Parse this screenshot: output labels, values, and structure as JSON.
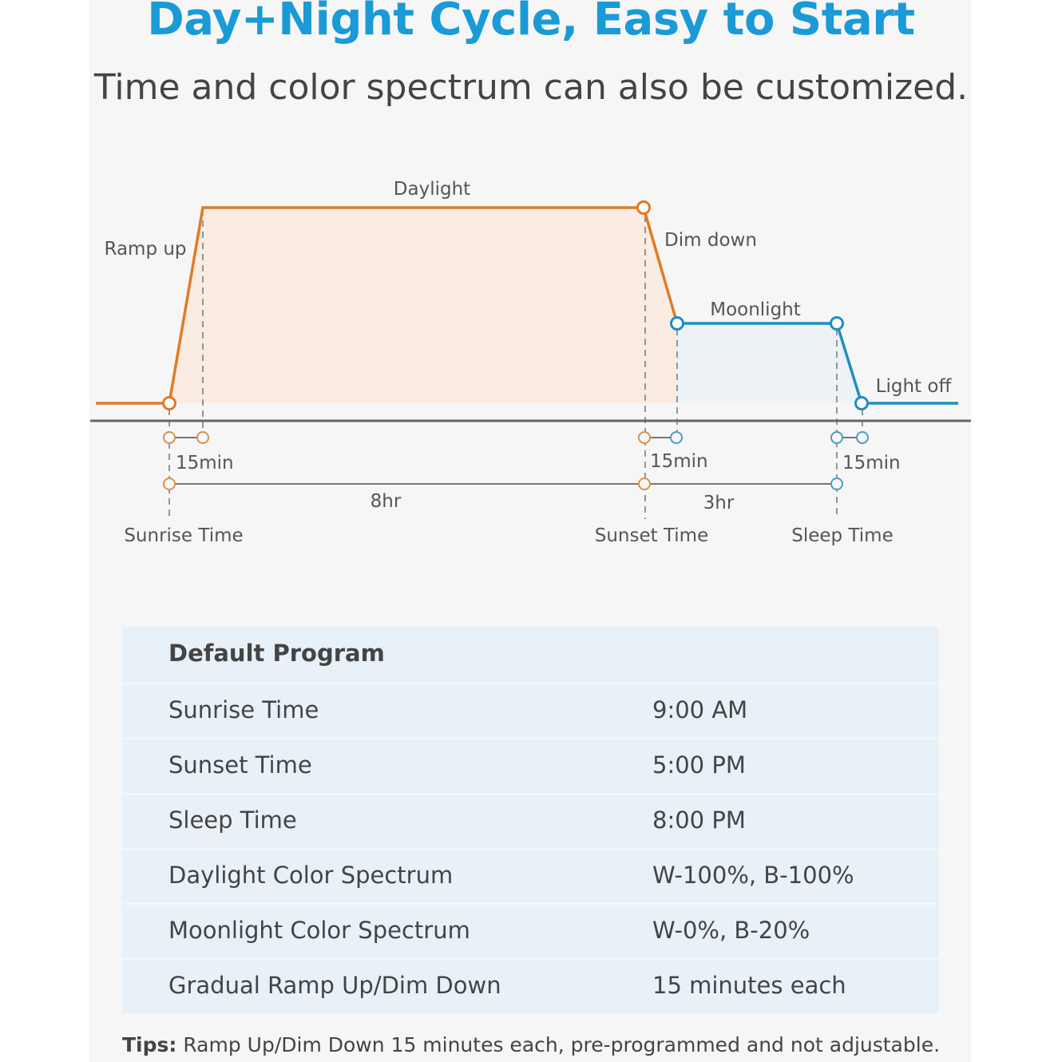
{
  "header": {
    "title": "Day+Night Cycle, Easy to Start",
    "subtitle": "Time and color spectrum can also be customized."
  },
  "colors": {
    "title": "#1a9ad6",
    "day": "#e07b24",
    "night": "#1e8fc0",
    "axis": "#666666"
  },
  "diagram": {
    "phases": {
      "ramp_up": "Ramp up",
      "daylight": "Daylight",
      "dim_down": "Dim down",
      "moonlight": "Moonlight",
      "light_off": "Light off"
    },
    "durations": {
      "ramp": "15min",
      "dim": "15min",
      "off": "15min",
      "day": "8hr",
      "moon": "3hr"
    },
    "markers": {
      "sunrise": "Sunrise Time",
      "sunset": "Sunset Time",
      "sleep": "Sleep Time"
    }
  },
  "table": {
    "title": "Default Program",
    "rows": [
      {
        "label": "Sunrise Time",
        "value": "9:00 AM"
      },
      {
        "label": "Sunset Time",
        "value": "5:00 PM"
      },
      {
        "label": "Sleep Time",
        "value": "8:00 PM"
      },
      {
        "label": "Daylight Color Spectrum",
        "value": "W-100%, B-100%"
      },
      {
        "label": "Moonlight Color Spectrum",
        "value": "W-0%, B-20%"
      },
      {
        "label": "Gradual Ramp Up/Dim Down",
        "value": "15 minutes each"
      }
    ]
  },
  "tips": {
    "label": "Tips:",
    "text": " Ramp Up/Dim Down 15 minutes each, pre-programmed and not adjustable."
  }
}
